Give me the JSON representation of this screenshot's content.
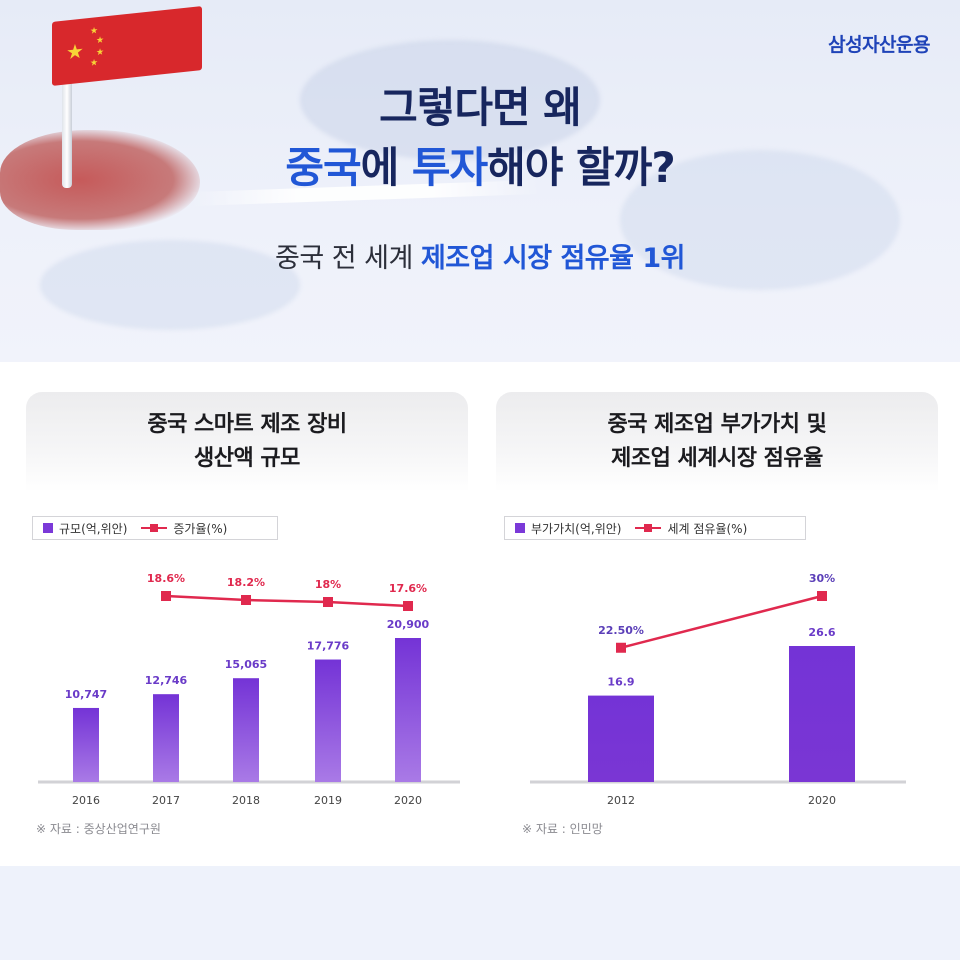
{
  "brand": "삼성자산운용",
  "headline": {
    "line1": "그렇다면 왜",
    "line2_blue1": "중국",
    "line2_mid1": "에 ",
    "line2_blue2": "투자",
    "line2_rest": "해야 할까?"
  },
  "subline": {
    "plain": "중국 전 세계 ",
    "highlight": "제조업 시장 점유율 1위"
  },
  "colors": {
    "bar": "#7b39d8",
    "line": "#e0294e",
    "blue": "#2157d6",
    "navy": "#17265e"
  },
  "cards": [
    {
      "title_line1": "중국 스마트 제조 장비",
      "title_line2": "생산액 규모",
      "legend_bar": "규모(억,위안)",
      "legend_line": "증가율(%)",
      "source": "※ 자료 : 중상산업연구원"
    },
    {
      "title_line1": "중국 제조업 부가가치 및",
      "title_line2": "제조업 세계시장 점유율",
      "legend_bar": "부가가치(억,위안)",
      "legend_line": "세계 점유율(%)",
      "source": "※ 자료 : 인민망"
    }
  ],
  "chart_data": [
    {
      "type": "bar",
      "title": "중국 스마트 제조 장비 생산액 규모",
      "categories": [
        "2016",
        "2017",
        "2018",
        "2019",
        "2020"
      ],
      "series": [
        {
          "name": "규모(억,위안)",
          "type": "bar",
          "values": [
            10747,
            12746,
            15065,
            17776,
            20900
          ],
          "labels": [
            "10,747",
            "12,746",
            "15,065",
            "17,776",
            "20,900"
          ]
        },
        {
          "name": "증가율(%)",
          "type": "line",
          "values": [
            null,
            18.6,
            18.2,
            18,
            17.6
          ],
          "labels": [
            "",
            "18.6%",
            "18.2%",
            "18%",
            "17.6%"
          ]
        }
      ],
      "grid": false,
      "legend": "top-left"
    },
    {
      "type": "bar",
      "title": "중국 제조업 부가가치 및 제조업 세계시장 점유율",
      "categories": [
        "2012",
        "2020"
      ],
      "series": [
        {
          "name": "부가가치(억,위안)",
          "type": "bar",
          "values": [
            16.9,
            26.6
          ],
          "labels": [
            "16.9",
            "26.6"
          ]
        },
        {
          "name": "세계 점유율(%)",
          "type": "line",
          "values": [
            22.5,
            30
          ],
          "labels": [
            "22.50%",
            "30%"
          ]
        }
      ],
      "grid": false,
      "legend": "top-left"
    }
  ]
}
